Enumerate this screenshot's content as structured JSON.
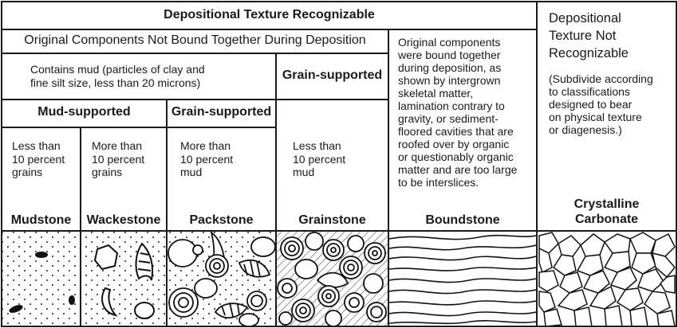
{
  "header": {
    "recognizable": "Depositional Texture Recognizable",
    "not_recognizable": "Depositional\nTexture Not\nRecognizable",
    "not_bound": "Original Components Not Bound Together During Deposition",
    "contains_mud": "Contains mud (particles of clay and\nfine silt size, less than 20 microns)",
    "grain_supported_top": "Grain-supported",
    "mud_supported": "Mud-supported",
    "grain_supported": "Grain-supported",
    "bound_description": "Original components\nwere bound together\nduring deposition, as\nshown by intergrown\nskeletal matter,\nlamination contrary to\ngravity, or sediment-\nfloored cavities that are\nroofed over by organic\nor questionably organic\nmatter and are too large\nto be interslices.",
    "subdivide_note": "(Subdivide according\nto classifications\ndesigned to bear\non physical texture\nor diagenesis.)"
  },
  "classes": [
    {
      "criteria": "Less than\n10 percent\ngrains",
      "name": "Mudstone"
    },
    {
      "criteria": "More than\n10 percent\ngrains",
      "name": "Wackestone"
    },
    {
      "criteria": "More than\n10 percent\nmud",
      "name": "Packstone"
    },
    {
      "criteria": "Less than\n10 percent\nmud",
      "name": "Grainstone"
    },
    {
      "criteria": "",
      "name": "Boundstone"
    },
    {
      "criteria": "",
      "name": "Crystalline\nCarbonate"
    }
  ]
}
